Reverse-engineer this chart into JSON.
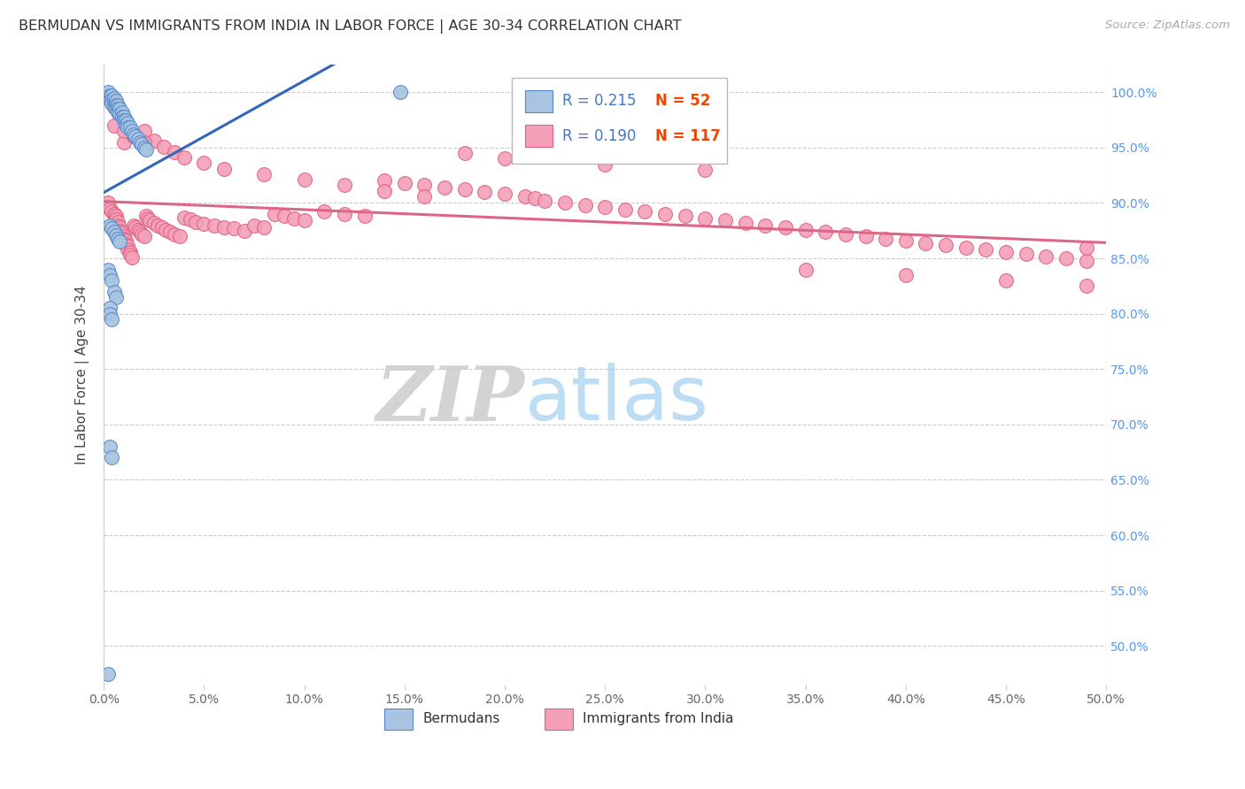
{
  "title": "BERMUDAN VS IMMIGRANTS FROM INDIA IN LABOR FORCE | AGE 30-34 CORRELATION CHART",
  "source": "Source: ZipAtlas.com",
  "ylabel": "In Labor Force | Age 30-34",
  "watermark_zip": "ZIP",
  "watermark_atlas": "atlas",
  "xmin": 0.0,
  "xmax": 0.5,
  "ymin": 0.465,
  "ymax": 1.025,
  "yticks": [
    0.5,
    0.55,
    0.6,
    0.65,
    0.7,
    0.75,
    0.8,
    0.85,
    0.9,
    0.95,
    1.0
  ],
  "xticks": [
    0.0,
    0.05,
    0.1,
    0.15,
    0.2,
    0.25,
    0.3,
    0.35,
    0.4,
    0.45,
    0.5
  ],
  "xlabels": [
    "0.0%",
    "5.0%",
    "10.0%",
    "15.0%",
    "20.0%",
    "25.0%",
    "30.0%",
    "35.0%",
    "40.0%",
    "45.0%",
    "50.0%"
  ],
  "ylabels_right": [
    "50.0%",
    "55.0%",
    "60.0%",
    "65.0%",
    "70.0%",
    "75.0%",
    "80.0%",
    "85.0%",
    "90.0%",
    "95.0%",
    "100.0%"
  ],
  "blue_R": 0.215,
  "blue_N": 52,
  "pink_R": 0.19,
  "pink_N": 117,
  "blue_color": "#a8c4e0",
  "pink_color": "#f4a0b8",
  "blue_edge": "#5588cc",
  "pink_edge": "#e06080",
  "blue_line_color": "#3366bb",
  "pink_line_color": "#dd6688",
  "legend_R_color": "#4477cc",
  "legend_N_color": "#ee4400",
  "blue_scatter_x": [
    0.002,
    0.003,
    0.003,
    0.004,
    0.004,
    0.004,
    0.005,
    0.005,
    0.005,
    0.006,
    0.006,
    0.006,
    0.007,
    0.007,
    0.007,
    0.008,
    0.008,
    0.009,
    0.009,
    0.01,
    0.01,
    0.011,
    0.011,
    0.012,
    0.012,
    0.013,
    0.014,
    0.015,
    0.016,
    0.017,
    0.018,
    0.019,
    0.02,
    0.021,
    0.003,
    0.004,
    0.005,
    0.006,
    0.007,
    0.008,
    0.002,
    0.003,
    0.004,
    0.005,
    0.006,
    0.003,
    0.003,
    0.004,
    0.003,
    0.004,
    0.148,
    0.002
  ],
  "blue_scatter_y": [
    1.0,
    0.997,
    0.993,
    0.997,
    0.993,
    0.99,
    0.995,
    0.99,
    0.987,
    0.992,
    0.988,
    0.985,
    0.988,
    0.985,
    0.982,
    0.985,
    0.98,
    0.982,
    0.978,
    0.978,
    0.975,
    0.975,
    0.971,
    0.972,
    0.968,
    0.968,
    0.965,
    0.962,
    0.96,
    0.958,
    0.955,
    0.953,
    0.95,
    0.948,
    0.88,
    0.877,
    0.874,
    0.871,
    0.868,
    0.865,
    0.84,
    0.835,
    0.83,
    0.82,
    0.815,
    0.805,
    0.8,
    0.795,
    0.68,
    0.67,
    1.0,
    0.475
  ],
  "pink_scatter_x": [
    0.002,
    0.003,
    0.004,
    0.005,
    0.006,
    0.006,
    0.007,
    0.007,
    0.008,
    0.008,
    0.009,
    0.01,
    0.01,
    0.011,
    0.011,
    0.012,
    0.012,
    0.013,
    0.013,
    0.014,
    0.015,
    0.016,
    0.017,
    0.018,
    0.019,
    0.02,
    0.021,
    0.022,
    0.023,
    0.025,
    0.027,
    0.029,
    0.031,
    0.033,
    0.035,
    0.038,
    0.04,
    0.043,
    0.046,
    0.05,
    0.055,
    0.06,
    0.065,
    0.07,
    0.075,
    0.08,
    0.085,
    0.09,
    0.095,
    0.1,
    0.11,
    0.12,
    0.13,
    0.14,
    0.15,
    0.16,
    0.17,
    0.18,
    0.19,
    0.2,
    0.21,
    0.215,
    0.22,
    0.23,
    0.24,
    0.25,
    0.26,
    0.27,
    0.28,
    0.29,
    0.3,
    0.31,
    0.32,
    0.33,
    0.34,
    0.35,
    0.36,
    0.37,
    0.38,
    0.39,
    0.4,
    0.41,
    0.42,
    0.43,
    0.44,
    0.45,
    0.46,
    0.47,
    0.48,
    0.49,
    0.01,
    0.015,
    0.02,
    0.025,
    0.03,
    0.035,
    0.04,
    0.05,
    0.06,
    0.08,
    0.1,
    0.12,
    0.14,
    0.16,
    0.18,
    0.2,
    0.25,
    0.3,
    0.35,
    0.4,
    0.45,
    0.49,
    0.005,
    0.01,
    0.015,
    0.02,
    0.49
  ],
  "pink_scatter_y": [
    0.9,
    0.895,
    0.892,
    0.89,
    0.888,
    0.885,
    0.883,
    0.88,
    0.878,
    0.875,
    0.873,
    0.87,
    0.868,
    0.866,
    0.863,
    0.861,
    0.858,
    0.856,
    0.853,
    0.851,
    0.88,
    0.878,
    0.876,
    0.874,
    0.872,
    0.87,
    0.888,
    0.886,
    0.884,
    0.882,
    0.88,
    0.878,
    0.876,
    0.874,
    0.872,
    0.87,
    0.887,
    0.885,
    0.883,
    0.881,
    0.88,
    0.878,
    0.877,
    0.875,
    0.88,
    0.878,
    0.89,
    0.888,
    0.886,
    0.884,
    0.892,
    0.89,
    0.888,
    0.92,
    0.918,
    0.916,
    0.914,
    0.912,
    0.91,
    0.908,
    0.906,
    0.904,
    0.902,
    0.9,
    0.898,
    0.896,
    0.894,
    0.892,
    0.89,
    0.888,
    0.886,
    0.884,
    0.882,
    0.88,
    0.878,
    0.876,
    0.874,
    0.872,
    0.87,
    0.868,
    0.866,
    0.864,
    0.862,
    0.86,
    0.858,
    0.856,
    0.854,
    0.852,
    0.85,
    0.848,
    0.955,
    0.96,
    0.965,
    0.956,
    0.951,
    0.946,
    0.941,
    0.936,
    0.931,
    0.926,
    0.921,
    0.916,
    0.911,
    0.906,
    0.945,
    0.94,
    0.935,
    0.93,
    0.84,
    0.835,
    0.83,
    0.825,
    0.97,
    0.965,
    0.96,
    0.955,
    0.86
  ]
}
